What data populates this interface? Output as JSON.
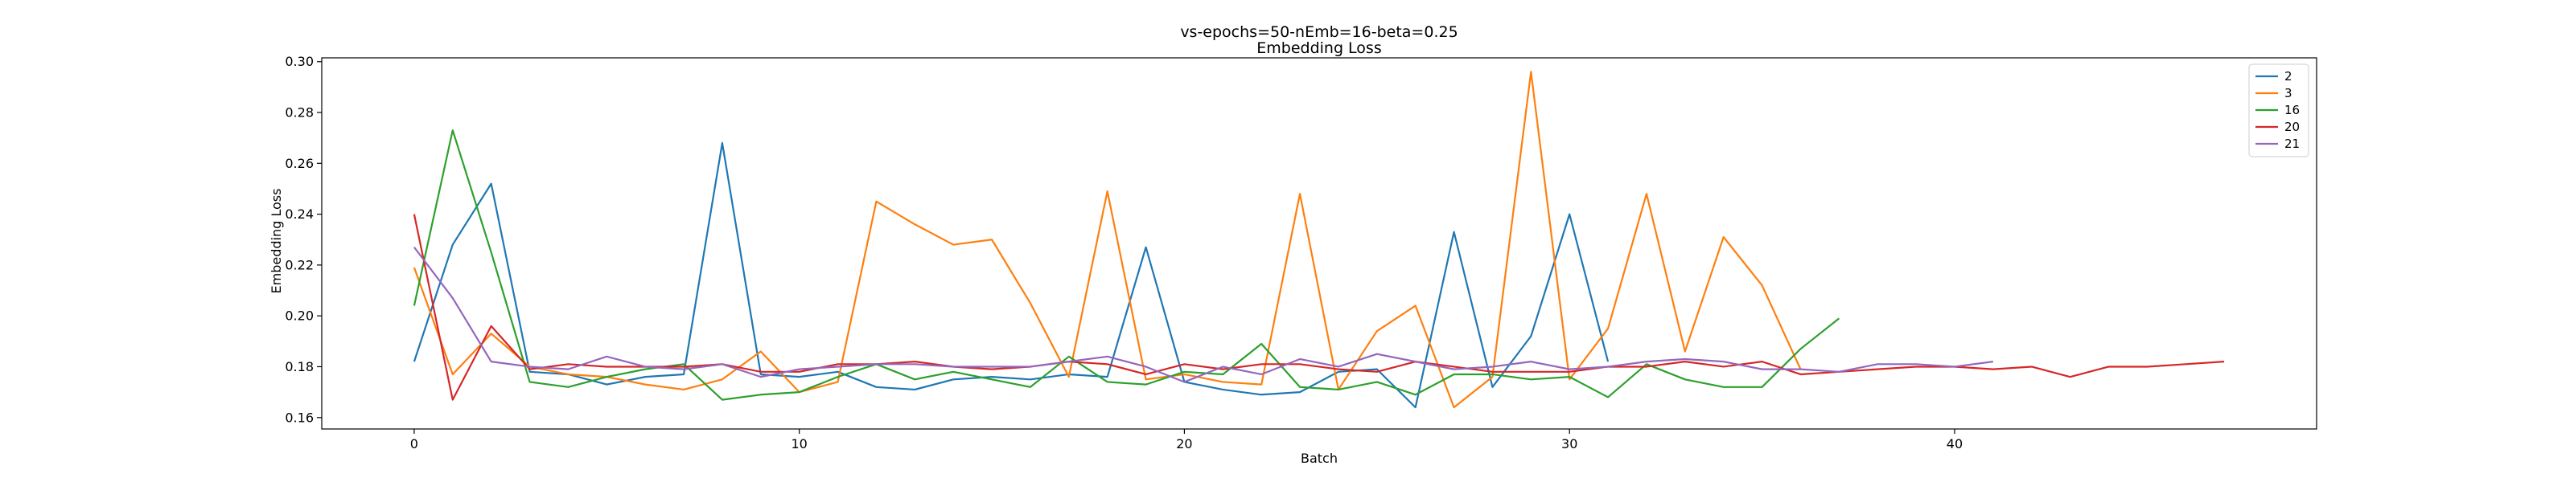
{
  "chart_data": {
    "type": "line",
    "title": "vs-epochs=50-nEmb=16-beta=0.25",
    "subtitle": "Embedding Loss",
    "xlabel": "Batch",
    "ylabel": "Embedding Loss",
    "xlim": [
      -2.4,
      49.4
    ],
    "ylim": [
      0.1555,
      0.3015
    ],
    "xticks": [
      0,
      10,
      20,
      30,
      40
    ],
    "yticks": [
      0.16,
      0.18,
      0.2,
      0.22,
      0.24,
      0.26,
      0.28,
      0.3
    ],
    "ytick_labels": [
      "0.16",
      "0.18",
      "0.20",
      "0.22",
      "0.24",
      "0.26",
      "0.28",
      "0.30"
    ],
    "grid": false,
    "legend_position": "top-right",
    "series": [
      {
        "name": "2",
        "color": "#1f77b4",
        "values": [
          0.182,
          0.228,
          0.252,
          0.178,
          0.177,
          0.173,
          0.176,
          0.177,
          0.268,
          0.177,
          0.176,
          0.178,
          0.172,
          0.171,
          0.175,
          0.176,
          0.175,
          0.177,
          0.176,
          0.227,
          0.174,
          0.171,
          0.169,
          0.17,
          0.178,
          0.179,
          0.164,
          0.233,
          0.172,
          0.192,
          0.24,
          0.182
        ]
      },
      {
        "name": "3",
        "color": "#ff7f0e",
        "values": [
          0.219,
          0.177,
          0.193,
          0.18,
          0.177,
          0.176,
          0.173,
          0.171,
          0.175,
          0.186,
          0.17,
          0.174,
          0.245,
          0.236,
          0.228,
          0.23,
          0.205,
          0.176,
          0.249,
          0.175,
          0.177,
          0.174,
          0.173,
          0.248,
          0.171,
          0.194,
          0.204,
          0.164,
          0.176,
          0.296,
          0.175,
          0.195,
          0.248,
          0.186,
          0.231,
          0.212,
          0.179
        ]
      },
      {
        "name": "16",
        "color": "#2ca02c",
        "values": [
          0.204,
          0.273,
          0.225,
          0.174,
          0.172,
          0.176,
          0.179,
          0.181,
          0.167,
          0.169,
          0.17,
          0.176,
          0.181,
          0.175,
          0.178,
          0.175,
          0.172,
          0.184,
          0.174,
          0.173,
          0.178,
          0.177,
          0.189,
          0.172,
          0.171,
          0.174,
          0.169,
          0.177,
          0.177,
          0.175,
          0.176,
          0.168,
          0.181,
          0.175,
          0.172,
          0.172,
          0.187,
          0.199
        ]
      },
      {
        "name": "20",
        "color": "#d62728",
        "values": [
          0.24,
          0.167,
          0.196,
          0.179,
          0.181,
          0.18,
          0.18,
          0.18,
          0.181,
          0.178,
          0.178,
          0.181,
          0.181,
          0.182,
          0.18,
          0.179,
          0.18,
          0.182,
          0.181,
          0.177,
          0.181,
          0.179,
          0.181,
          0.181,
          0.179,
          0.178,
          0.182,
          0.18,
          0.178,
          0.178,
          0.178,
          0.18,
          0.18,
          0.182,
          0.18,
          0.182,
          0.177,
          0.178,
          0.179,
          0.18,
          0.18,
          0.179,
          0.18,
          0.176,
          0.18,
          0.18,
          0.181,
          0.182
        ]
      },
      {
        "name": "21",
        "color": "#9467bd",
        "values": [
          0.227,
          0.207,
          0.182,
          0.18,
          0.179,
          0.184,
          0.18,
          0.179,
          0.181,
          0.176,
          0.179,
          0.18,
          0.181,
          0.181,
          0.18,
          0.18,
          0.18,
          0.182,
          0.184,
          0.18,
          0.174,
          0.18,
          0.177,
          0.183,
          0.18,
          0.185,
          0.182,
          0.179,
          0.18,
          0.182,
          0.179,
          0.18,
          0.182,
          0.183,
          0.182,
          0.179,
          0.179,
          0.178,
          0.181,
          0.181,
          0.18,
          0.182
        ]
      }
    ]
  }
}
